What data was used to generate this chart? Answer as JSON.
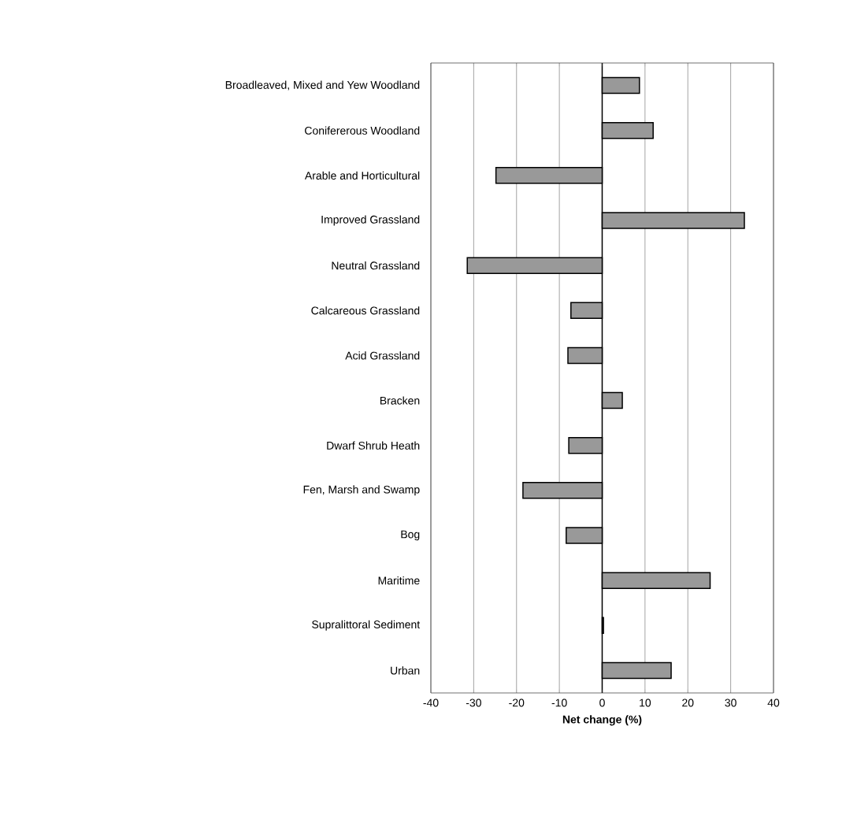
{
  "chart_data": {
    "type": "bar",
    "orientation": "horizontal",
    "xlabel": "Net change (%)",
    "categories": [
      "Broadleaved, Mixed and Yew Woodland",
      "Conifererous Woodland",
      "Arable and Horticultural",
      "Improved Grassland",
      "Neutral Grassland",
      "Calcareous Grassland",
      "Acid Grassland",
      "Bracken",
      "Dwarf Shrub Heath",
      "Fen, Marsh and Swamp",
      "Bog",
      "Maritime",
      "Supralittoral Sediment",
      "Urban"
    ],
    "values": [
      8.7,
      11.9,
      -24.8,
      33.2,
      -31.5,
      -7.3,
      -8.0,
      4.7,
      -7.8,
      -18.5,
      -8.4,
      25.2,
      0.3,
      16.1
    ],
    "color": "#999999",
    "xlim": [
      -40,
      40
    ],
    "xticks": [
      -40,
      -30,
      -20,
      -10,
      0,
      10,
      20,
      30,
      40
    ],
    "grid": "x"
  }
}
